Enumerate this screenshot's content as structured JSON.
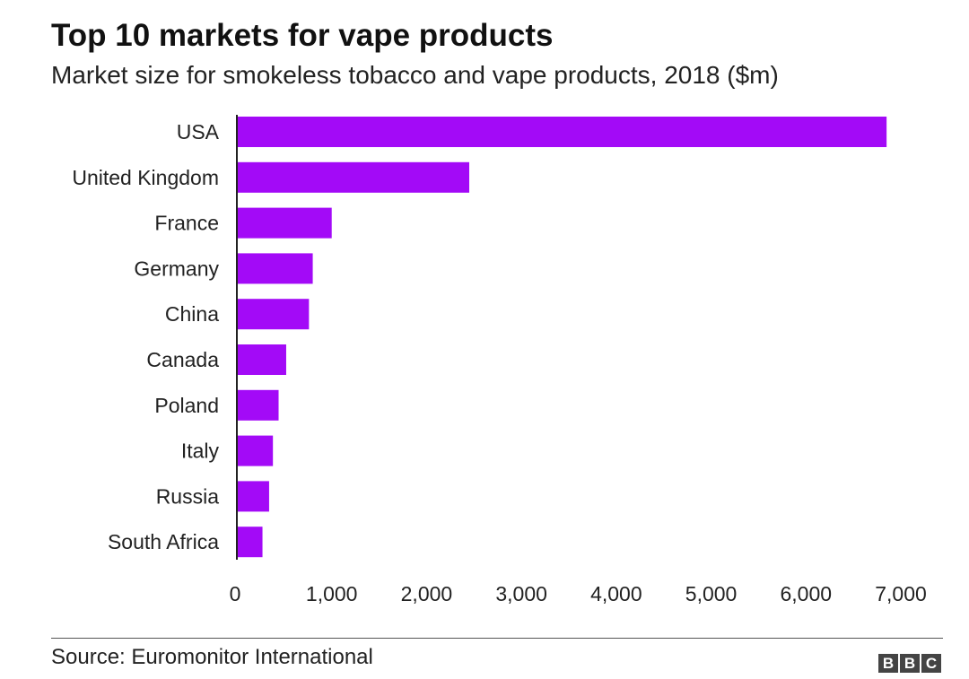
{
  "chart_data": {
    "type": "bar",
    "orientation": "horizontal",
    "title": "Top 10 markets for vape products",
    "subtitle": "Market size for smokeless tobacco and vape products, 2018 ($m)",
    "categories": [
      "USA",
      "United Kingdom",
      "France",
      "Germany",
      "China",
      "Canada",
      "Poland",
      "Italy",
      "Russia",
      "South Africa"
    ],
    "values": [
      6850,
      2450,
      1000,
      800,
      760,
      520,
      440,
      380,
      340,
      270
    ],
    "xlim": [
      0,
      7000
    ],
    "xticks": [
      0,
      1000,
      2000,
      3000,
      4000,
      5000,
      6000,
      7000
    ],
    "xtick_labels": [
      "0",
      "1,000",
      "2,000",
      "3,000",
      "4,000",
      "5,000",
      "6,000",
      "7,000"
    ],
    "grid": false,
    "colors": {
      "bar": "#a30af7",
      "axis": "#222222"
    }
  },
  "footer": {
    "source": "Source: Euromonitor International",
    "logo_letters": [
      "B",
      "B",
      "C"
    ]
  }
}
